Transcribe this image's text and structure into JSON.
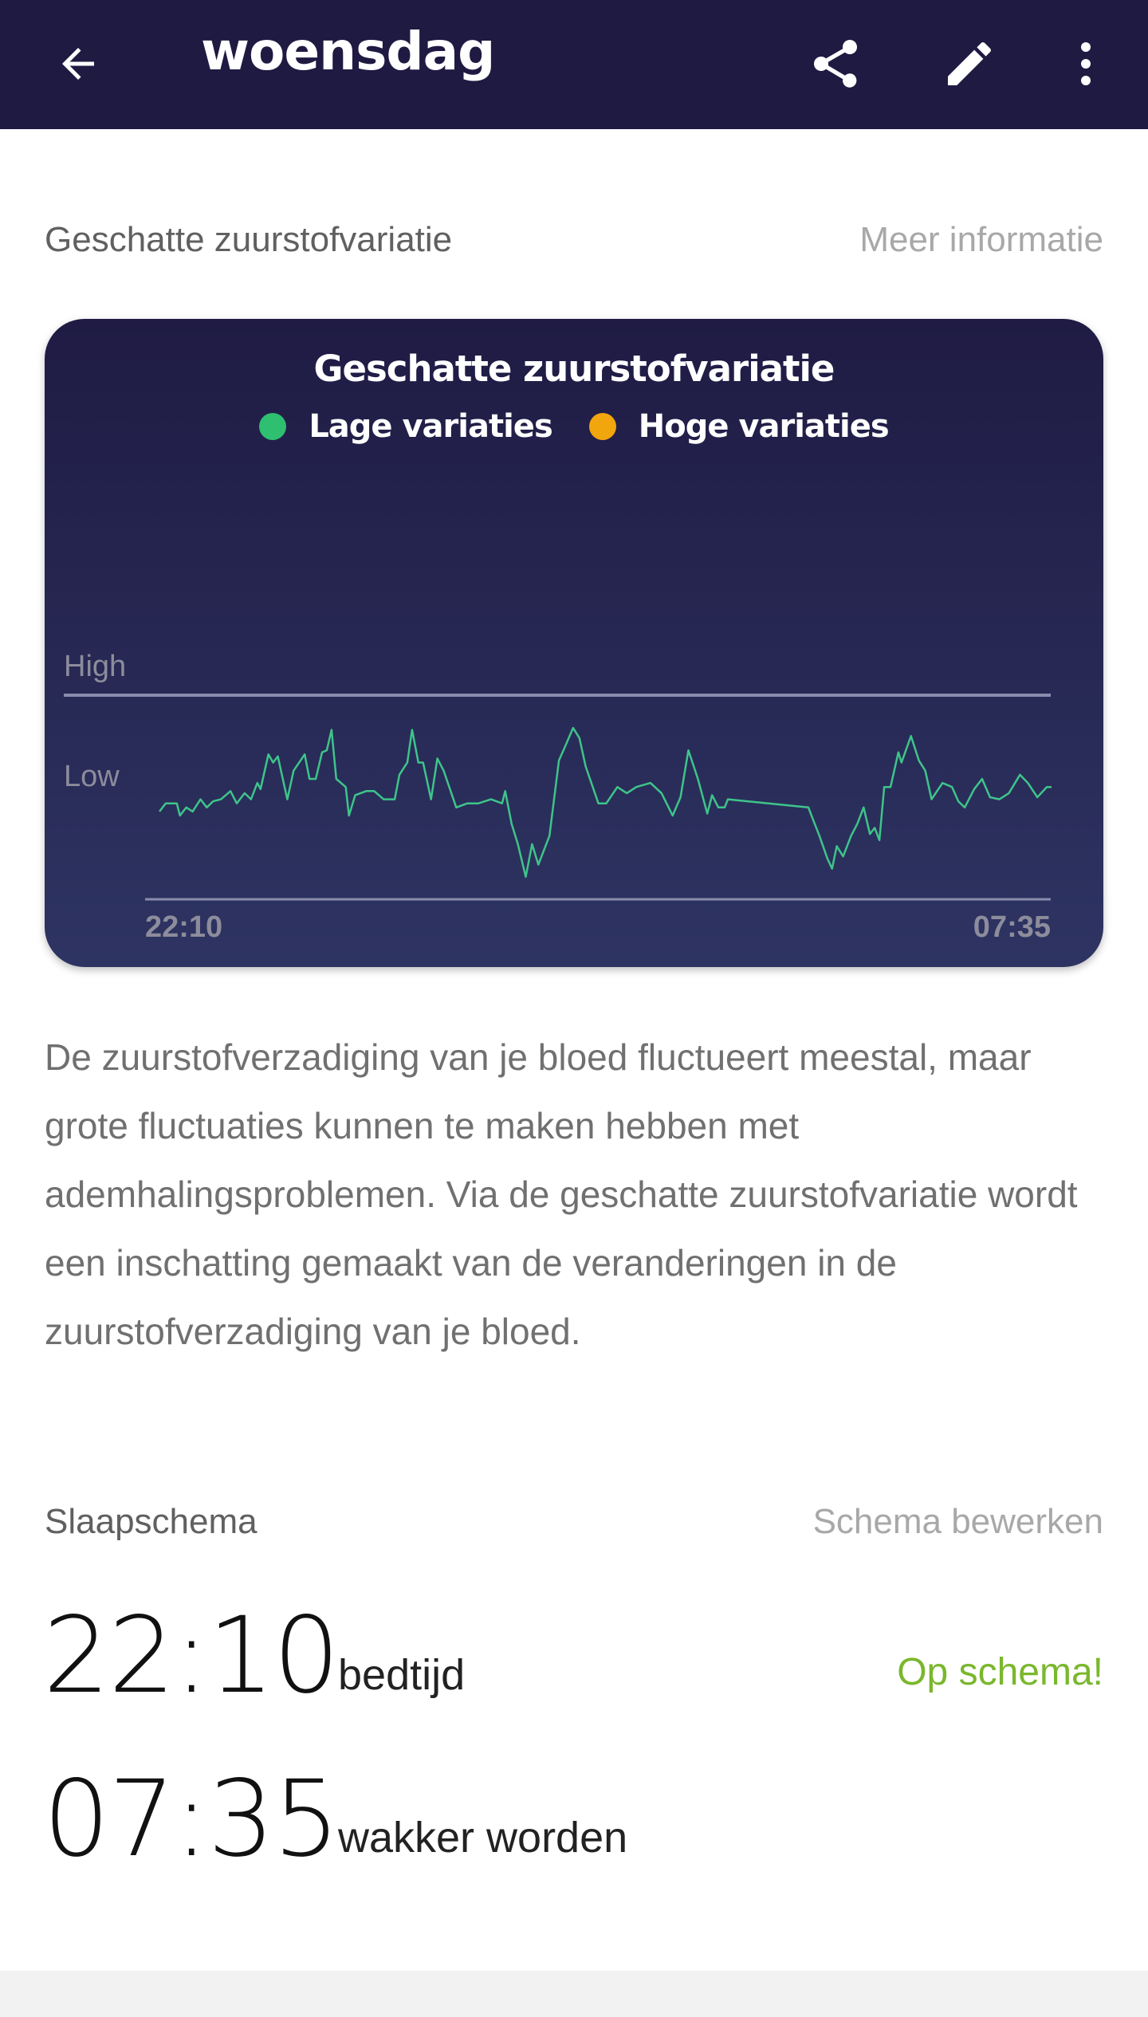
{
  "header": {
    "title": "woensdag",
    "icons": [
      "back-arrow-icon",
      "share-icon",
      "edit-pencil-icon",
      "more-vert-icon"
    ]
  },
  "oxygen": {
    "section_label": "Geschatte zuurstofvariatie",
    "more_info": "Meer informatie",
    "description": "De zuurstofverzadiging van je bloed fluctueert meestal, maar grote fluctuaties kunnen te maken hebben met ademhalingsproblemen. Via de geschatte zuurstofvariatie wordt een inschatting gemaakt van de veranderingen in de zuurstofverzadiging van je bloed."
  },
  "chart_data": {
    "type": "line",
    "title": "Geschatte zuurstofvariatie",
    "legend": [
      {
        "name": "Lage variaties",
        "color": "#2fbf71"
      },
      {
        "name": "Hoge variaties",
        "color": "#f2a60d"
      }
    ],
    "legend_placement": "top",
    "y_ticks": [
      {
        "label": "High",
        "value": 100
      },
      {
        "label": "Low",
        "value": 61
      }
    ],
    "ylim": [
      0,
      100
    ],
    "x_ticks": [
      "22:10",
      "07:35"
    ],
    "grid": false,
    "series": [
      {
        "color": "#3ec48a",
        "points": [
          [
            "22:10",
            43
          ],
          [
            "22:14",
            47
          ],
          [
            "22:21",
            47
          ],
          [
            "22:23",
            41
          ],
          [
            "22:27",
            45
          ],
          [
            "22:31",
            43
          ],
          [
            "22:36",
            49
          ],
          [
            "22:40",
            45
          ],
          [
            "22:44",
            48
          ],
          [
            "22:49",
            49
          ],
          [
            "22:55",
            53
          ],
          [
            "22:59",
            47
          ],
          [
            "23:04",
            52
          ],
          [
            "23:08",
            49
          ],
          [
            "23:12",
            57
          ],
          [
            "23:14",
            54
          ],
          [
            "23:19",
            71
          ],
          [
            "23:22",
            67
          ],
          [
            "23:25",
            70
          ],
          [
            "23:31",
            49
          ],
          [
            "23:35",
            63
          ],
          [
            "23:42",
            71
          ],
          [
            "23:45",
            59
          ],
          [
            "23:49",
            59
          ],
          [
            "23:53",
            72
          ],
          [
            "23:56",
            73
          ],
          [
            "23:59",
            83
          ],
          [
            "00:02",
            59
          ],
          [
            "00:08",
            55
          ],
          [
            "00:10",
            41
          ],
          [
            "00:14",
            51
          ],
          [
            "00:21",
            53
          ],
          [
            "00:26",
            53
          ],
          [
            "00:32",
            49
          ],
          [
            "00:39",
            49
          ],
          [
            "00:42",
            61
          ],
          [
            "00:47",
            67
          ],
          [
            "00:50",
            83
          ],
          [
            "00:54",
            67
          ],
          [
            "00:57",
            67
          ],
          [
            "01:02",
            49
          ],
          [
            "01:06",
            69
          ],
          [
            "01:10",
            63
          ],
          [
            "01:18",
            45
          ],
          [
            "01:25",
            47
          ],
          [
            "01:32",
            47
          ],
          [
            "01:40",
            49
          ],
          [
            "01:47",
            47
          ],
          [
            "01:49",
            53
          ],
          [
            "01:53",
            37
          ],
          [
            "01:57",
            27
          ],
          [
            "02:02",
            11
          ],
          [
            "02:06",
            27
          ],
          [
            "02:10",
            17
          ],
          [
            "02:17",
            31
          ],
          [
            "02:23",
            68
          ],
          [
            "02:27",
            75
          ],
          [
            "02:32",
            84
          ],
          [
            "02:36",
            79
          ],
          [
            "02:40",
            65
          ],
          [
            "02:48",
            47
          ],
          [
            "02:53",
            47
          ],
          [
            "03:00",
            55
          ],
          [
            "03:06",
            52
          ],
          [
            "03:12",
            55
          ],
          [
            "03:21",
            57
          ],
          [
            "03:28",
            52
          ],
          [
            "03:35",
            41
          ],
          [
            "03:40",
            50
          ],
          [
            "03:45",
            73
          ],
          [
            "03:51",
            59
          ],
          [
            "03:57",
            42
          ],
          [
            "04:00",
            51
          ],
          [
            "04:04",
            45
          ],
          [
            "04:08",
            45
          ],
          [
            "04:10",
            49
          ],
          [
            "05:01",
            45
          ],
          [
            "05:04",
            39
          ],
          [
            "05:08",
            31
          ],
          [
            "05:13",
            20
          ],
          [
            "05:16",
            15
          ],
          [
            "05:19",
            26
          ],
          [
            "05:23",
            21
          ],
          [
            "05:28",
            31
          ],
          [
            "05:32",
            37
          ],
          [
            "05:36",
            45
          ],
          [
            "05:40",
            32
          ],
          [
            "05:43",
            35
          ],
          [
            "05:46",
            29
          ],
          [
            "05:49",
            55
          ],
          [
            "05:53",
            55
          ],
          [
            "05:58",
            72
          ],
          [
            "06:00",
            67
          ],
          [
            "06:06",
            80
          ],
          [
            "06:11",
            68
          ],
          [
            "06:15",
            63
          ],
          [
            "06:19",
            49
          ],
          [
            "06:26",
            57
          ],
          [
            "06:32",
            55
          ],
          [
            "06:36",
            48
          ],
          [
            "06:40",
            45
          ],
          [
            "06:46",
            54
          ],
          [
            "06:51",
            59
          ],
          [
            "06:56",
            50
          ],
          [
            "07:02",
            49
          ],
          [
            "07:08",
            52
          ],
          [
            "07:15",
            61
          ],
          [
            "07:20",
            57
          ],
          [
            "07:26",
            50
          ],
          [
            "07:32",
            55
          ],
          [
            "07:35",
            55
          ]
        ]
      }
    ]
  },
  "schedule": {
    "section_label": "Slaapschema",
    "edit_link": "Schema bewerken",
    "bedtime": "22:10",
    "bedtime_label": "bedtijd",
    "wake": "07:35",
    "wake_label": "wakker worden",
    "status": "Op schema!",
    "status_color": "#7ab72d"
  }
}
